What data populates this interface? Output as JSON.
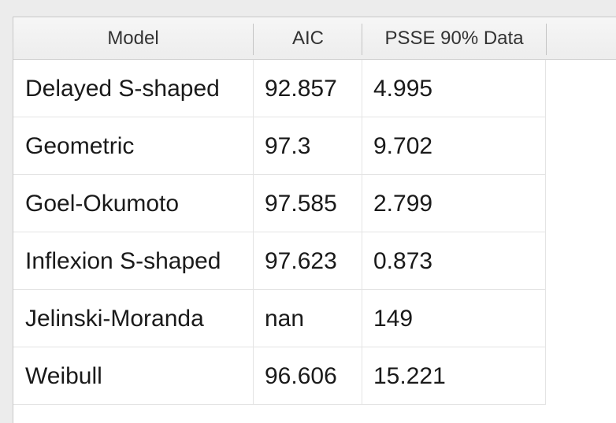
{
  "table": {
    "columns": [
      "Model",
      "AIC",
      "PSSE 90% Data"
    ],
    "rows": [
      {
        "model": "Delayed S-shaped",
        "aic": "92.857",
        "psse": "4.995"
      },
      {
        "model": "Geometric",
        "aic": "97.3",
        "psse": "9.702"
      },
      {
        "model": "Goel-Okumoto",
        "aic": "97.585",
        "psse": "2.799"
      },
      {
        "model": "Inflexion S-shaped",
        "aic": "97.623",
        "psse": "0.873"
      },
      {
        "model": "Jelinski-Moranda",
        "aic": "nan",
        "psse": "149"
      },
      {
        "model": "Weibull",
        "aic": "96.606",
        "psse": "15.221"
      }
    ]
  }
}
